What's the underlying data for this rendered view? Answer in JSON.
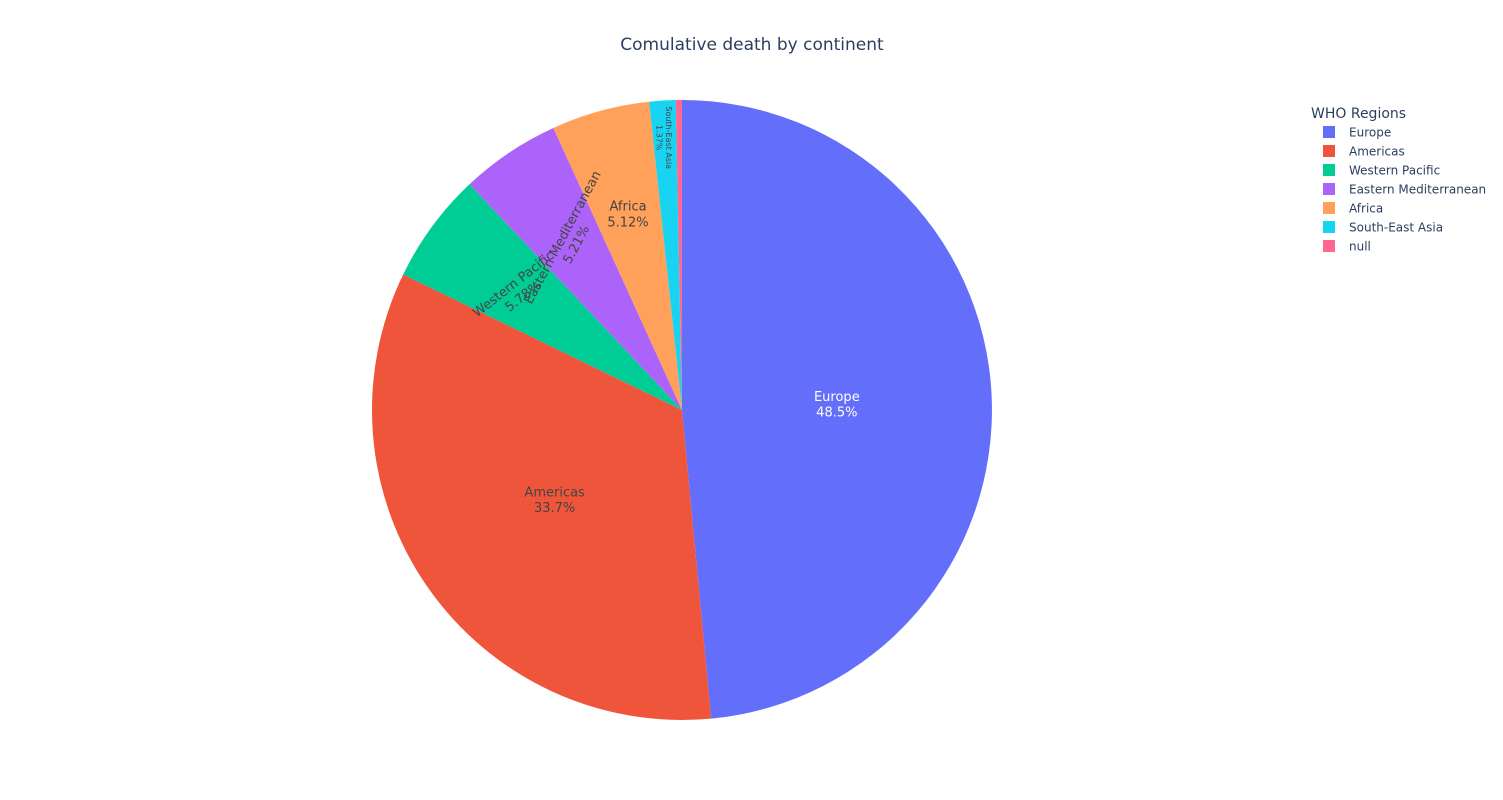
{
  "chart_data": {
    "type": "pie",
    "title": "Comulative death by continent",
    "legend": {
      "title": "WHO Regions",
      "placement": "top-right"
    },
    "sort_order": "descending",
    "direction": "clockwise",
    "slices": [
      {
        "label": "Europe",
        "percent": 48.5,
        "display_percent": "48.5%",
        "color": "#636efa",
        "text_color": "#ffffff"
      },
      {
        "label": "Americas",
        "percent": 33.7,
        "display_percent": "33.7%",
        "color": "#ef553b",
        "text_color": "#444444"
      },
      {
        "label": "Western Pacific",
        "percent": 5.78,
        "display_percent": "5.78%",
        "color": "#00cc96",
        "text_color": "#444444"
      },
      {
        "label": "Eastern Mediterranean",
        "percent": 5.21,
        "display_percent": "5.21%",
        "color": "#ab63fa",
        "text_color": "#444444"
      },
      {
        "label": "Africa",
        "percent": 5.12,
        "display_percent": "5.12%",
        "color": "#ffa15a",
        "text_color": "#444444"
      },
      {
        "label": "South-East Asia",
        "percent": 1.37,
        "display_percent": "1.37%",
        "color": "#19d3f3",
        "text_color": "#444444"
      },
      {
        "label": "null",
        "percent": 0.32,
        "display_percent": "",
        "color": "#ff6692",
        "text_color": "#444444"
      }
    ]
  }
}
